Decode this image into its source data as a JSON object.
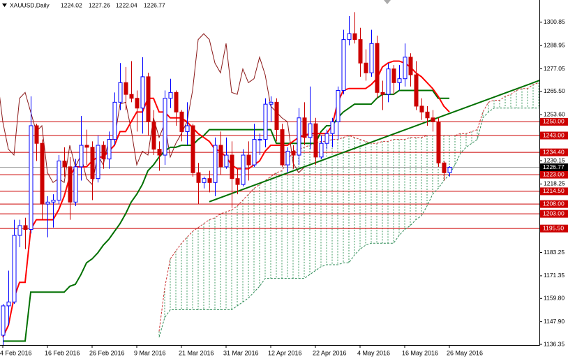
{
  "chart_data": {
    "type": "candlestick",
    "title": "XAUUSD,Daily",
    "quote": [
      1224.02,
      1227.26,
      1222.04,
      1226.77
    ],
    "ylim": [
      1136.0,
      1312.2
    ],
    "yticks": [
      1300.85,
      1288.95,
      1277.05,
      {
        "value": 1265.5,
        "label": "1265.50"
      },
      {
        "value": 1253.6,
        "label": "1253.60"
      },
      1230.15,
      1218.25,
      1183.25,
      1171.35,
      {
        "value": 1159.8,
        "label": "1159.80"
      },
      {
        "value": 1147.9,
        "label": "1147.90"
      },
      1136.35
    ],
    "xticks": [
      {
        "value": 0,
        "label": "4 Feb 2016"
      },
      {
        "value": 8,
        "label": "16 Feb 2016"
      },
      {
        "value": 16,
        "label": "26 Feb 2016"
      },
      {
        "value": 24,
        "label": "9 Mar 2016"
      },
      {
        "value": 32,
        "label": "21 Mar 2016"
      },
      {
        "value": 40,
        "label": "31 Mar 2016"
      },
      {
        "value": 48,
        "label": "12 Apr 2016"
      },
      {
        "value": 56,
        "label": "22 Apr 2016"
      },
      {
        "value": 64,
        "label": "4 May 2016"
      },
      {
        "value": 72,
        "label": "16 May 2016"
      },
      {
        "value": 80,
        "label": "26 May 2016"
      }
    ],
    "up_color": "#0000ff",
    "down_color": "#cc0000",
    "open": [
      1141,
      1156,
      1158,
      1192,
      1197,
      1195,
      1248,
      1239,
      1208,
      1209,
      1210,
      1230,
      1227,
      1209,
      1227,
      1238,
      1237,
      1221,
      1238,
      1231,
      1241,
      1260,
      1270,
      1264,
      1262,
      1257,
      1273,
      1250,
      1236,
      1233,
      1262,
      1265,
      1255,
      1245,
      1248,
      1224,
      1219,
      1221,
      1219,
      1238,
      1227,
      1233,
      1221,
      1218,
      1233,
      1228,
      1241,
      1241,
      1259,
      1260,
      1246,
      1228,
      1235,
      1233,
      1252,
      1242,
      1249,
      1232,
      1239,
      1244,
      1250,
      1266,
      1292,
      1295,
      1292,
      1280,
      1275,
      1290,
      1265,
      1264,
      1277,
      1270,
      1272,
      1283,
      1274,
      1258,
      1255,
      1252,
      1250,
      1229,
      1224.02
    ],
    "high": [
      1157,
      1174,
      1200,
      1200,
      1201,
      1263,
      1249,
      1241,
      1212,
      1213,
      1233,
      1237,
      1232,
      1231,
      1253,
      1246,
      1240,
      1243,
      1240,
      1245,
      1265,
      1280,
      1278,
      1281,
      1266,
      1283,
      1275,
      1256,
      1240,
      1266,
      1272,
      1266,
      1256,
      1260,
      1249,
      1229,
      1222,
      1225,
      1242,
      1245,
      1242,
      1240,
      1226,
      1236,
      1240,
      1249,
      1244,
      1262,
      1263,
      1262,
      1249,
      1237,
      1238,
      1257,
      1260,
      1268,
      1252,
      1243,
      1246,
      1252,
      1268,
      1297,
      1304,
      1306,
      1298,
      1287,
      1297,
      1294,
      1271,
      1280,
      1279,
      1279,
      1290,
      1285,
      1281,
      1262,
      1258,
      1256,
      1252,
      1230,
      1227.26
    ],
    "low": [
      1136,
      1146,
      1157,
      1186,
      1185,
      1193,
      1230,
      1200,
      1191,
      1196,
      1208,
      1222,
      1200,
      1207,
      1220,
      1228,
      1210,
      1219,
      1226,
      1226,
      1238,
      1256,
      1256,
      1260,
      1245,
      1244,
      1243,
      1233,
      1225,
      1228,
      1257,
      1248,
      1240,
      1238,
      1222,
      1208,
      1216,
      1214,
      1212,
      1223,
      1226,
      1206,
      1213,
      1217,
      1220,
      1227,
      1233,
      1237,
      1250,
      1240,
      1227,
      1224,
      1226,
      1228,
      1238,
      1236,
      1228,
      1231,
      1236,
      1237,
      1241,
      1264,
      1289,
      1290,
      1273,
      1271,
      1273,
      1262,
      1256,
      1260,
      1264,
      1266,
      1268,
      1268,
      1256,
      1251,
      1248,
      1245,
      1227,
      1220,
      1222.04
    ],
    "close": [
      1156,
      1158,
      1192,
      1197,
      1195,
      1248,
      1239,
      1208,
      1209,
      1210,
      1230,
      1227,
      1209,
      1227,
      1238,
      1237,
      1221,
      1238,
      1231,
      1241,
      1260,
      1270,
      1264,
      1262,
      1257,
      1273,
      1250,
      1236,
      1233,
      1262,
      1265,
      1255,
      1245,
      1248,
      1224,
      1219,
      1221,
      1219,
      1238,
      1227,
      1233,
      1221,
      1218,
      1233,
      1228,
      1241,
      1241,
      1259,
      1260,
      1246,
      1228,
      1235,
      1233,
      1252,
      1242,
      1249,
      1232,
      1239,
      1244,
      1250,
      1266,
      1292,
      1295,
      1292,
      1280,
      1275,
      1290,
      1265,
      1264,
      1277,
      1270,
      1272,
      1283,
      1274,
      1258,
      1255,
      1252,
      1250,
      1229,
      1224,
      1226.77
    ],
    "tenkan": {
      "color": "#ff0000",
      "values": [
        1140,
        1146,
        1160,
        1168,
        1168,
        1195,
        1200,
        1200,
        1200,
        1200,
        1205,
        1212,
        1222,
        1227,
        1227,
        1227,
        1230,
        1232,
        1232,
        1235,
        1238,
        1245,
        1245,
        1250,
        1255,
        1255,
        1262,
        1262,
        1255,
        1255,
        1252,
        1252,
        1252,
        1250,
        1247,
        1244,
        1242,
        1240,
        1236,
        1235,
        1232,
        1228,
        1226,
        1226,
        1226,
        1228,
        1230,
        1235,
        1238,
        1238,
        1238,
        1238,
        1240,
        1242,
        1243,
        1244,
        1244,
        1244,
        1244,
        1248,
        1260,
        1266,
        1267,
        1267,
        1267,
        1267,
        1269,
        1272,
        1278,
        1280,
        1281,
        1281,
        1280,
        1278,
        1275,
        1273,
        1270,
        1267,
        1263,
        1258,
        1255
      ]
    },
    "kijun": {
      "color": "#007000",
      "values": [
        1138,
        1138,
        1138,
        1138,
        1138,
        1163,
        1163,
        1163,
        1163,
        1163,
        1163,
        1163,
        1166,
        1167,
        1172,
        1178,
        1180,
        1183,
        1187,
        1190,
        1194,
        1198,
        1203,
        1209,
        1213,
        1218,
        1225,
        1228,
        1232,
        1235,
        1237,
        1237,
        1238,
        1238,
        1238,
        1241,
        1243,
        1246,
        1246,
        1246,
        1246,
        1246,
        1246,
        1246,
        1246,
        1246,
        1246,
        1246,
        1246,
        1239,
        1239,
        1239,
        1239,
        1239,
        1239,
        1239,
        1239,
        1245,
        1248,
        1248,
        1252,
        1255,
        1257,
        1259,
        1259,
        1259,
        1259,
        1262,
        1264,
        1264,
        1264,
        1266,
        1266,
        1266,
        1266,
        1266,
        1266,
        1266,
        1262,
        1262,
        1262
      ]
    },
    "senkou_a": {
      "color": "#cc3333",
      "values": [
        null,
        null,
        null,
        null,
        null,
        null,
        null,
        null,
        null,
        null,
        null,
        null,
        null,
        null,
        null,
        null,
        null,
        null,
        null,
        null,
        null,
        null,
        null,
        null,
        null,
        null,
        null,
        null,
        1143,
        1165,
        1180,
        1184,
        1188,
        1191,
        1194,
        1196,
        1198,
        1200,
        1201,
        1203,
        1204,
        1205,
        1207,
        1210,
        1213,
        1216,
        1218,
        1220,
        1222,
        1224,
        1225,
        1230,
        1235,
        1236,
        1237,
        1238,
        1239,
        1240,
        1240,
        1241,
        1241,
        1242,
        1243,
        1242,
        1241,
        1240,
        1239,
        1239,
        1240,
        1240,
        1241,
        1241,
        1241,
        1242,
        1242,
        1242,
        1243,
        1243,
        1243,
        1243,
        1243,
        1243,
        1244,
        1244,
        1245,
        1246,
        1255,
        1260,
        1261,
        1261,
        1263,
        1264,
        1266,
        1267,
        1267,
        1269,
        1270
      ]
    },
    "senkou_b": {
      "color": "#2e8b57",
      "values": [
        null,
        null,
        null,
        null,
        null,
        null,
        null,
        null,
        null,
        null,
        null,
        null,
        null,
        null,
        null,
        null,
        null,
        null,
        null,
        null,
        null,
        null,
        null,
        null,
        null,
        null,
        null,
        null,
        1140,
        1150,
        1154,
        1154,
        1154,
        1154,
        1154,
        1154,
        1154,
        1154,
        1154,
        1154,
        1154,
        1154,
        1156,
        1158,
        1160,
        1163,
        1166,
        1170,
        1170,
        1170,
        1170,
        1170,
        1170,
        1170,
        1170,
        1172,
        1174,
        1176,
        1177,
        1177,
        1177,
        1178,
        1178,
        1182,
        1185,
        1187,
        1188,
        1188,
        1188,
        1188,
        1188,
        1192,
        1195,
        1197,
        1200,
        1202,
        1207,
        1213,
        1216,
        1220,
        1223,
        1228,
        1234,
        1237,
        1239,
        1241,
        1252,
        1255,
        1257,
        1257,
        1257,
        1257,
        1257,
        1257,
        1257,
        1257,
        1257
      ]
    },
    "cloud_color": "#3c9a5f",
    "chikou": {
      "color": "#8b1a1a",
      "shift": 26
    },
    "levels": {
      "color": "#cc0000",
      "values": [
        1250,
        1243,
        1234.4,
        1223,
        1214.5,
        1208,
        1203,
        1195.5
      ],
      "value_labels": [
        "1250.00",
        "1243.00",
        "1234.40",
        "1223.00",
        "1214.50",
        "1208.00",
        "1203.00",
        "1195.50"
      ]
    },
    "price_line_color": "#a0a0a0",
    "trendlines": [
      {
        "color": "#007000",
        "x": [
          37,
          96.5
        ],
        "y": [
          1209.2,
          1271.5
        ]
      }
    ]
  }
}
